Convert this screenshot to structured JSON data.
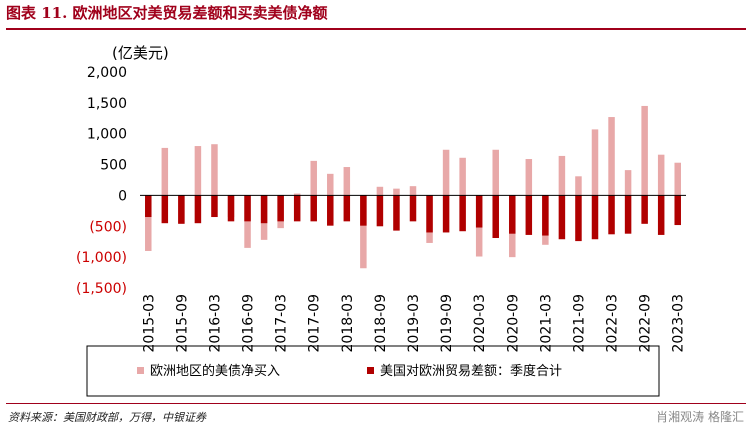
{
  "title": "图表 11. 欧洲地区对美贸易差额和买卖美债净额",
  "source": "资料来源：美国财政部，万得，中银证券",
  "watermark": "肖湘观涛 格隆汇",
  "chart_data": {
    "type": "bar",
    "ylabel": "(亿美元)",
    "ylim": [
      -1500,
      2000
    ],
    "ytick_values": [
      2000,
      1500,
      1000,
      500,
      0,
      -500,
      -1000,
      -1500
    ],
    "ytick_labels": [
      "2,000",
      "1,500",
      "1,000",
      "500",
      "0",
      "(500)",
      "(1,000)",
      "(1,500)"
    ],
    "negative_label_color": "#cc0000",
    "categories": [
      "2015-03",
      "2015-06",
      "2015-09",
      "2015-12",
      "2016-03",
      "2016-06",
      "2016-09",
      "2016-12",
      "2017-03",
      "2017-06",
      "2017-09",
      "2017-12",
      "2018-03",
      "2018-06",
      "2018-09",
      "2018-12",
      "2019-03",
      "2019-06",
      "2019-09",
      "2019-12",
      "2020-03",
      "2020-06",
      "2020-09",
      "2020-12",
      "2021-03",
      "2021-06",
      "2021-09",
      "2021-12",
      "2022-03",
      "2022-06",
      "2022-09",
      "2022-12",
      "2023-03"
    ],
    "xtick_labels": [
      "2015-03",
      "2015-09",
      "2016-03",
      "2016-09",
      "2017-03",
      "2017-09",
      "2018-03",
      "2018-09",
      "2019-03",
      "2019-09",
      "2020-03",
      "2020-09",
      "2021-03",
      "2021-09",
      "2022-03",
      "2022-09",
      "2023-03"
    ],
    "series": [
      {
        "name": "欧洲地区的美债净买入",
        "color": "#e8a8a8",
        "values": [
          -900,
          770,
          -450,
          800,
          830,
          -350,
          -850,
          -720,
          -530,
          30,
          560,
          350,
          460,
          -1180,
          140,
          110,
          150,
          -770,
          740,
          610,
          -990,
          740,
          -1000,
          590,
          -800,
          640,
          310,
          1070,
          1270,
          410,
          1450,
          660,
          530
        ]
      },
      {
        "name": "美国对欧洲贸易差额：季度合计",
        "color": "#b00000",
        "values": [
          -350,
          -450,
          -460,
          -450,
          -350,
          -420,
          -420,
          -450,
          -420,
          -420,
          -420,
          -490,
          -420,
          -490,
          -500,
          -570,
          -420,
          -600,
          -600,
          -580,
          -520,
          -690,
          -620,
          -640,
          -650,
          -710,
          -740,
          -710,
          -630,
          -620,
          -460,
          -640,
          -480
        ]
      }
    ],
    "grid": false,
    "legend_position": "bottom"
  }
}
